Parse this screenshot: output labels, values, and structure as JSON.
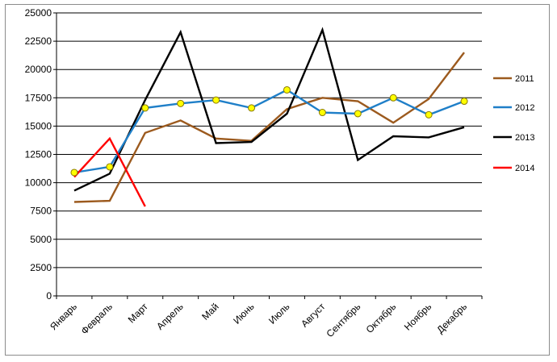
{
  "chart_data": {
    "type": "line",
    "title": "",
    "xlabel": "",
    "ylabel": "",
    "categories": [
      "Январь",
      "Февраль",
      "Март",
      "Апрель",
      "Май",
      "Июнь",
      "Июль",
      "Август",
      "Сентябрь",
      "Октябрь",
      "Ноябрь",
      "Декабрь"
    ],
    "ylim": [
      0,
      25000
    ],
    "yticks": [
      0,
      2500,
      5000,
      7500,
      10000,
      12500,
      15000,
      17500,
      20000,
      22500,
      25000
    ],
    "ytick_labels": [
      "0",
      "2500",
      "5000",
      "7500",
      "10000",
      "12500",
      "15000",
      "17500",
      "20000",
      "22500",
      "25000"
    ],
    "grid": "horizontal",
    "legend_position": "right",
    "series": [
      {
        "name": "2011",
        "color": "#9c5a1e",
        "markers": false,
        "values": [
          8300,
          8400,
          14400,
          15500,
          13900,
          13700,
          16500,
          17500,
          17200,
          15300,
          17400,
          21500
        ]
      },
      {
        "name": "2012",
        "color": "#1f7fc8",
        "markers": true,
        "values": [
          10900,
          11400,
          16600,
          17000,
          17300,
          16600,
          18200,
          16200,
          16100,
          17500,
          16000,
          17200
        ]
      },
      {
        "name": "2013",
        "color": "#000000",
        "markers": false,
        "values": [
          9300,
          10800,
          17300,
          23300,
          13500,
          13600,
          16100,
          23500,
          12000,
          14100,
          14000,
          14900
        ]
      },
      {
        "name": "2014",
        "color": "#ff0000",
        "markers": false,
        "values": [
          10500,
          13900,
          7900,
          null,
          null,
          null,
          null,
          null,
          null,
          null,
          null,
          null
        ]
      }
    ],
    "marker_style": {
      "fill": "#ffff00",
      "stroke": "#8a7a00"
    }
  }
}
